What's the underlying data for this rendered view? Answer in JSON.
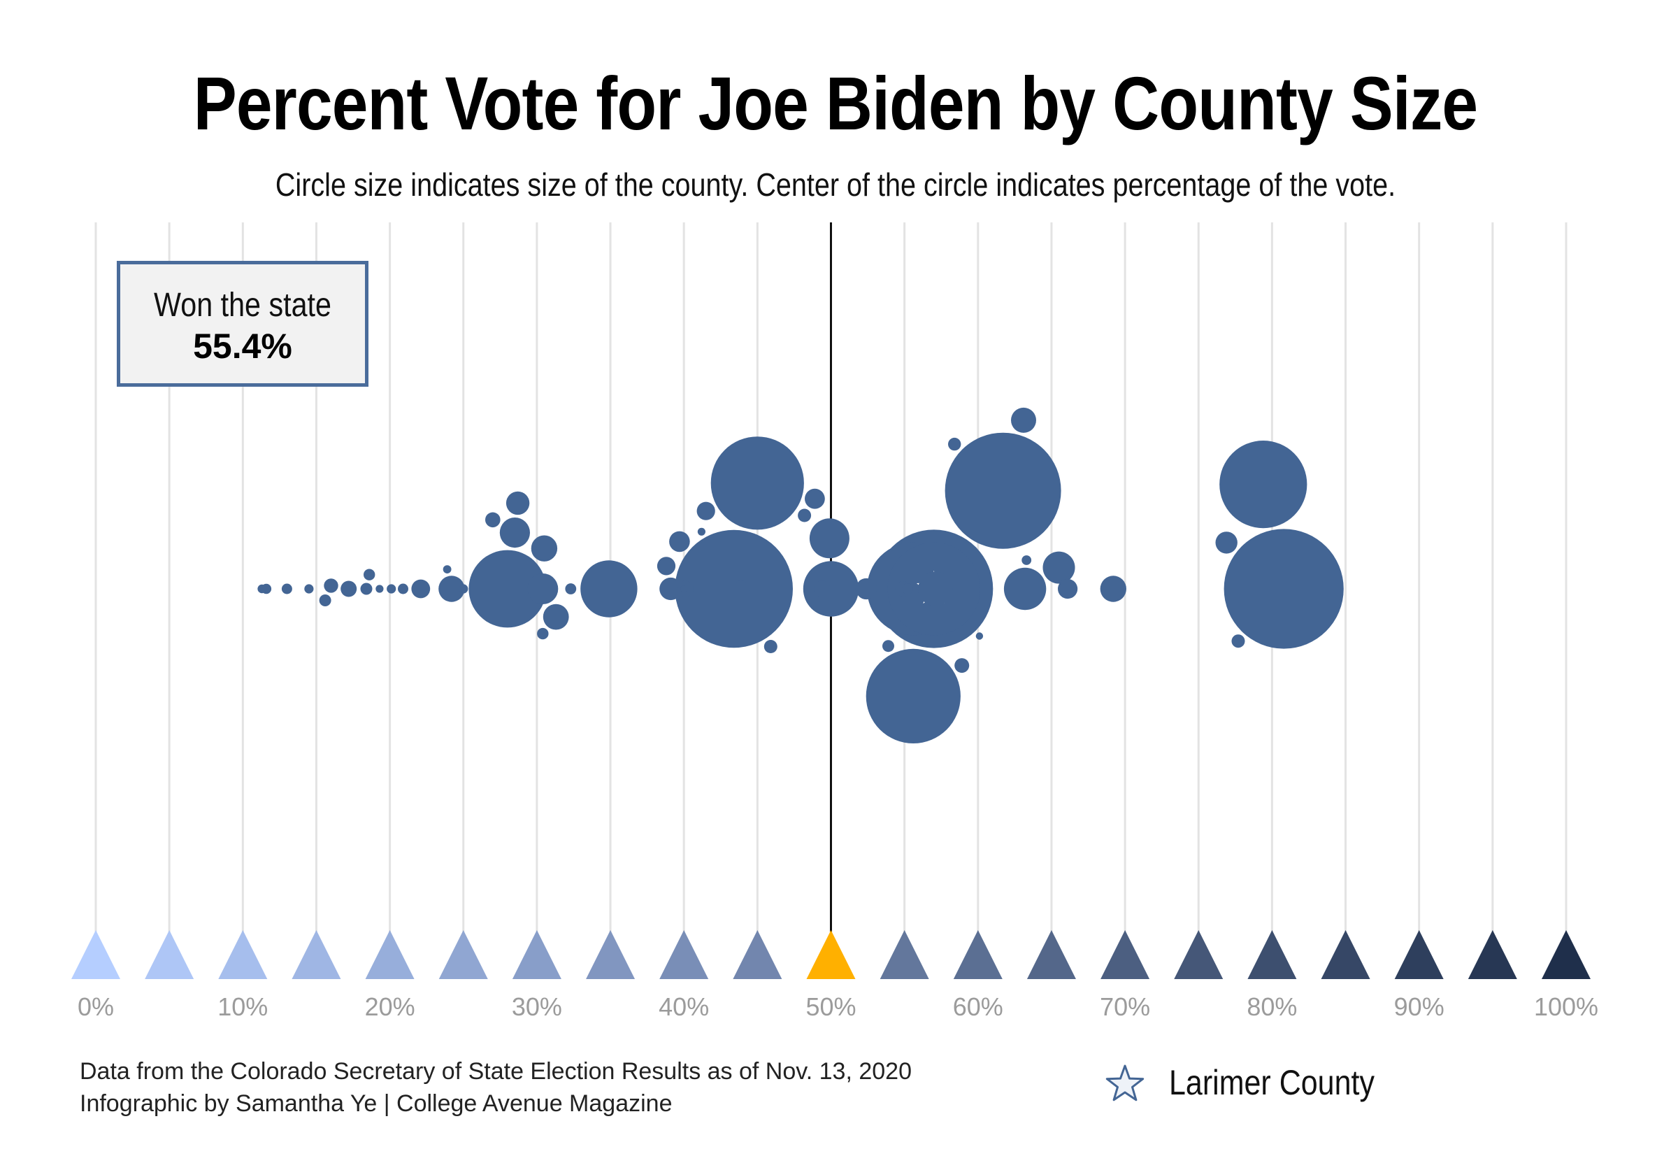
{
  "chart_data": {
    "type": "scatter",
    "title": "Percent Vote for Joe Biden by County Size",
    "subtitle": "Circle size indicates size of the county. Center of the circle indicates percentage of the vote.",
    "xlim": [
      0,
      100
    ],
    "x_ticks": [
      "0%",
      "10%",
      "20%",
      "30%",
      "40%",
      "50%",
      "60%",
      "70%",
      "80%",
      "90%",
      "100%"
    ],
    "grid": true,
    "reference_line": 50,
    "annotation": {
      "label": "Won the state",
      "value": "55.4%"
    },
    "legend": {
      "marker": "star",
      "label": "Larimer County",
      "placement": "bottom-right"
    },
    "colors": {
      "bubble": "#436594",
      "midpoint_marker": "#ffb000",
      "scale_low": "#b5ceff",
      "scale_high": "#1f2f4b",
      "box_border": "#4a6c9b"
    },
    "points": [
      {
        "pct": 11.6,
        "size": 2.2
      },
      {
        "pct": 11.3,
        "size": 1.9
      },
      {
        "pct": 13.0,
        "size": 2.3
      },
      {
        "pct": 14.5,
        "size": 2.0
      },
      {
        "pct": 15.6,
        "size": 2.6
      },
      {
        "pct": 16.0,
        "size": 3.1
      },
      {
        "pct": 17.2,
        "size": 3.5
      },
      {
        "pct": 18.4,
        "size": 2.6
      },
      {
        "pct": 18.6,
        "size": 2.5
      },
      {
        "pct": 19.3,
        "size": 1.7
      },
      {
        "pct": 20.1,
        "size": 2.0
      },
      {
        "pct": 20.9,
        "size": 2.3
      },
      {
        "pct": 22.1,
        "size": 4.1
      },
      {
        "pct": 23.9,
        "size": 1.8
      },
      {
        "pct": 24.2,
        "size": 5.7
      },
      {
        "pct": 25.0,
        "size": 2.0
      },
      {
        "pct": 27.0,
        "size": 3.3
      },
      {
        "pct": 28.0,
        "size": 16.9
      },
      {
        "pct": 28.5,
        "size": 6.6
      },
      {
        "pct": 28.7,
        "size": 5.1
      },
      {
        "pct": 30.4,
        "size": 2.5
      },
      {
        "pct": 30.4,
        "size": 6.7
      },
      {
        "pct": 30.5,
        "size": 5.7
      },
      {
        "pct": 31.3,
        "size": 5.6
      },
      {
        "pct": 32.3,
        "size": 2.4
      },
      {
        "pct": 34.9,
        "size": 12.4
      },
      {
        "pct": 38.8,
        "size": 4.0
      },
      {
        "pct": 39.1,
        "size": 4.9
      },
      {
        "pct": 39.7,
        "size": 4.5
      },
      {
        "pct": 40.0,
        "size": 1.5
      },
      {
        "pct": 40.1,
        "size": 3.5
      },
      {
        "pct": 41.2,
        "size": 1.7
      },
      {
        "pct": 41.5,
        "size": 4.0
      },
      {
        "pct": 43.4,
        "size": 25.7
      },
      {
        "pct": 43.9,
        "size": 3.6
      },
      {
        "pct": 45.0,
        "size": 20.3
      },
      {
        "pct": 45.9,
        "size": 2.9
      },
      {
        "pct": 48.2,
        "size": 2.9
      },
      {
        "pct": 48.9,
        "size": 4.4
      },
      {
        "pct": 49.4,
        "size": 3.6
      },
      {
        "pct": 49.9,
        "size": 8.7
      },
      {
        "pct": 50.0,
        "size": 12.1
      },
      {
        "pct": 52.4,
        "size": 4.6
      },
      {
        "pct": 53.9,
        "size": 2.6
      },
      {
        "pct": 54.9,
        "size": 3.3
      },
      {
        "pct": 55.2,
        "size": 2.4
      },
      {
        "pct": 55.6,
        "size": 20.2
      },
      {
        "pct": 55.6,
        "size": 20.6
      },
      {
        "pct": 57.0,
        "size": 25.8
      },
      {
        "pct": 57.1,
        "size": 7.5
      },
      {
        "pct": 58.4,
        "size": 2.8
      },
      {
        "pct": 58.9,
        "size": 3.2
      },
      {
        "pct": 60.1,
        "size": 1.6
      },
      {
        "pct": 61.7,
        "size": 25.3
      },
      {
        "pct": 63.1,
        "size": 5.5
      },
      {
        "pct": 63.2,
        "size": 9.2
      },
      {
        "pct": 63.3,
        "size": 2.1
      },
      {
        "pct": 65.5,
        "size": 7.0
      },
      {
        "pct": 66.1,
        "size": 4.3
      },
      {
        "pct": 69.2,
        "size": 5.7
      },
      {
        "pct": 76.9,
        "size": 4.8
      },
      {
        "pct": 77.7,
        "size": 2.9
      },
      {
        "pct": 79.4,
        "size": 19.1
      },
      {
        "pct": 80.8,
        "size": 26.1
      }
    ],
    "larimer": {
      "pct": 57.0,
      "size": 20.2
    }
  },
  "credits": {
    "line1": "Data from the Colorado Secretary of State Election Results as of Nov. 13, 2020",
    "line2": "Infographic by Samantha Ye | College Avenue Magazine"
  }
}
